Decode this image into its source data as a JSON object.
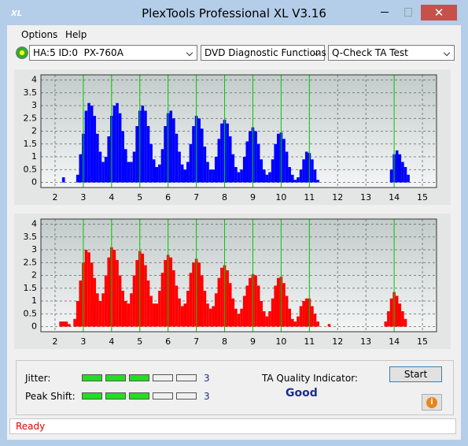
{
  "window": {
    "title": "PlexTools Professional XL V3.16"
  },
  "menu": [
    "Options",
    "Help"
  ],
  "toolbar": {
    "drive": "HA:5 ID:0  PX-760A",
    "function": "DVD Diagnostic Functions",
    "test": "Q-Check TA Test"
  },
  "chart_data": [
    {
      "type": "bar",
      "color": "#0000ff",
      "grid": true,
      "reference_lines": [
        3,
        4,
        5,
        6,
        7,
        8,
        9,
        10,
        11,
        14
      ],
      "reference_color": "#00cc00",
      "xlim": [
        1.5,
        15.5
      ],
      "ylim": [
        -0.2,
        4.2
      ],
      "xticks": [
        2,
        3,
        4,
        5,
        6,
        7,
        8,
        9,
        10,
        11,
        12,
        13,
        14,
        15
      ],
      "yticks": [
        0,
        0.5,
        1,
        1.5,
        2,
        2.5,
        3,
        3.5,
        4
      ],
      "x": [
        2.3,
        2.8,
        2.9,
        3.0,
        3.1,
        3.2,
        3.3,
        3.4,
        3.5,
        3.6,
        3.7,
        3.8,
        3.9,
        4.0,
        4.1,
        4.2,
        4.3,
        4.4,
        4.5,
        4.6,
        4.7,
        4.8,
        4.9,
        5.0,
        5.1,
        5.2,
        5.3,
        5.4,
        5.5,
        5.6,
        5.7,
        5.8,
        5.9,
        6.0,
        6.1,
        6.2,
        6.3,
        6.4,
        6.5,
        6.6,
        6.7,
        6.8,
        6.9,
        7.0,
        7.1,
        7.2,
        7.3,
        7.4,
        7.5,
        7.6,
        7.7,
        7.8,
        7.9,
        8.0,
        8.1,
        8.2,
        8.3,
        8.4,
        8.5,
        8.6,
        8.7,
        8.8,
        8.9,
        9.0,
        9.1,
        9.2,
        9.3,
        9.4,
        9.5,
        9.6,
        9.7,
        9.8,
        9.9,
        10.0,
        10.1,
        10.2,
        10.3,
        10.4,
        10.5,
        10.6,
        10.7,
        10.8,
        10.9,
        11.0,
        11.1,
        11.2,
        11.3,
        13.9,
        14.0,
        14.1,
        14.2,
        14.3,
        14.4,
        14.5
      ],
      "values": [
        0.2,
        0.3,
        1.1,
        1.9,
        2.8,
        3.1,
        3.0,
        2.6,
        1.9,
        1.2,
        0.8,
        1.0,
        1.8,
        2.6,
        3.0,
        3.1,
        2.7,
        2.0,
        1.3,
        0.8,
        0.8,
        1.2,
        2.2,
        2.8,
        3.0,
        2.8,
        2.2,
        1.5,
        0.9,
        0.6,
        0.7,
        1.3,
        2.2,
        2.7,
        2.8,
        2.5,
        1.9,
        1.2,
        0.7,
        0.5,
        0.8,
        1.5,
        2.2,
        2.6,
        2.5,
        2.1,
        1.4,
        0.8,
        0.5,
        0.5,
        1.0,
        1.7,
        2.3,
        2.45,
        2.3,
        1.8,
        1.1,
        0.6,
        0.4,
        0.5,
        1.0,
        1.6,
        2.0,
        2.15,
        2.0,
        1.5,
        0.9,
        0.5,
        0.3,
        0.4,
        0.9,
        1.5,
        1.9,
        1.95,
        1.7,
        1.2,
        0.6,
        0.3,
        0.1,
        0.2,
        0.5,
        0.9,
        1.2,
        1.15,
        0.9,
        0.5,
        0.1,
        0.5,
        1.1,
        1.25,
        1.1,
        0.8,
        0.6,
        0.3
      ]
    },
    {
      "type": "bar",
      "color": "#ff0000",
      "grid": true,
      "reference_lines": [
        3,
        4,
        5,
        6,
        7,
        8,
        9,
        10,
        11,
        14
      ],
      "reference_color": "#00cc00",
      "xlim": [
        1.5,
        15.5
      ],
      "ylim": [
        -0.2,
        4.2
      ],
      "xticks": [
        2,
        3,
        4,
        5,
        6,
        7,
        8,
        9,
        10,
        11,
        12,
        13,
        14,
        15
      ],
      "yticks": [
        0,
        0.5,
        1,
        1.5,
        2,
        2.5,
        3,
        3.5,
        4
      ],
      "x": [
        2.2,
        2.3,
        2.4,
        2.5,
        2.7,
        2.8,
        2.9,
        3.0,
        3.1,
        3.2,
        3.3,
        3.4,
        3.5,
        3.6,
        3.7,
        3.8,
        3.9,
        4.0,
        4.1,
        4.2,
        4.3,
        4.4,
        4.5,
        4.6,
        4.7,
        4.8,
        4.9,
        5.0,
        5.1,
        5.2,
        5.3,
        5.4,
        5.5,
        5.6,
        5.7,
        5.8,
        5.9,
        6.0,
        6.1,
        6.2,
        6.3,
        6.4,
        6.5,
        6.6,
        6.7,
        6.8,
        6.9,
        7.0,
        7.1,
        7.2,
        7.3,
        7.4,
        7.5,
        7.6,
        7.7,
        7.8,
        7.9,
        8.0,
        8.1,
        8.2,
        8.3,
        8.4,
        8.5,
        8.6,
        8.7,
        8.8,
        8.9,
        9.0,
        9.1,
        9.2,
        9.3,
        9.4,
        9.5,
        9.6,
        9.7,
        9.8,
        9.9,
        10.0,
        10.1,
        10.2,
        10.3,
        10.4,
        10.5,
        10.6,
        10.7,
        10.8,
        10.9,
        11.0,
        11.1,
        11.2,
        11.3,
        11.7,
        13.7,
        13.8,
        13.9,
        14.0,
        14.1,
        14.2,
        14.3,
        14.4
      ],
      "values": [
        0.2,
        0.2,
        0.2,
        0.1,
        0.3,
        1.0,
        1.8,
        2.5,
        3.0,
        2.9,
        2.5,
        1.9,
        1.3,
        1.0,
        1.3,
        2.0,
        2.7,
        3.1,
        3.0,
        2.6,
        2.0,
        1.4,
        1.0,
        0.9,
        1.3,
        2.0,
        2.6,
        2.95,
        2.85,
        2.4,
        1.8,
        1.2,
        0.9,
        0.9,
        1.4,
        2.1,
        2.6,
        2.8,
        2.7,
        2.2,
        1.6,
        1.1,
        0.8,
        0.9,
        1.4,
        2.1,
        2.5,
        2.65,
        2.5,
        2.0,
        1.4,
        0.9,
        0.7,
        0.8,
        1.3,
        1.9,
        2.3,
        2.4,
        2.2,
        1.7,
        1.1,
        0.7,
        0.5,
        0.7,
        1.2,
        1.6,
        1.9,
        2.05,
        2.0,
        1.6,
        1.0,
        0.6,
        0.4,
        0.6,
        1.1,
        1.6,
        1.9,
        1.95,
        1.7,
        1.2,
        0.7,
        0.3,
        0.2,
        0.4,
        0.8,
        1.0,
        1.1,
        1.1,
        0.8,
        0.5,
        0.2,
        0.1,
        0.2,
        0.6,
        1.1,
        1.35,
        1.2,
        0.9,
        0.6,
        0.3
      ]
    }
  ],
  "results": {
    "jitter_label": "Jitter:",
    "jitter": 3,
    "peak_shift_label": "Peak Shift:",
    "peak_shift": 3,
    "ta_quality_label": "TA Quality Indicator:",
    "ta_quality": "Good",
    "start_button": "Start"
  },
  "status": "Ready"
}
